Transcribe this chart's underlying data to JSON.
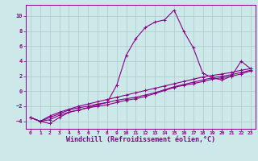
{
  "background_color": "#cce8e8",
  "grid_color": "#aacccc",
  "line_color": "#880088",
  "xlabel": "Windchill (Refroidissement éolien,°C)",
  "xlabel_fontsize": 6.0,
  "yticks": [
    -4,
    -2,
    0,
    2,
    4,
    6,
    8,
    10
  ],
  "xticks": [
    0,
    1,
    2,
    3,
    4,
    5,
    6,
    7,
    8,
    9,
    10,
    11,
    12,
    13,
    14,
    15,
    16,
    17,
    18,
    19,
    20,
    21,
    22,
    23
  ],
  "xlim": [
    -0.5,
    23.5
  ],
  "ylim": [
    -5.0,
    11.5
  ],
  "series1": [
    [
      0,
      -3.5
    ],
    [
      1,
      -4.0
    ],
    [
      2,
      -4.3
    ],
    [
      3,
      -3.5
    ],
    [
      4,
      -2.8
    ],
    [
      5,
      -2.5
    ],
    [
      6,
      -2.2
    ],
    [
      7,
      -1.8
    ],
    [
      8,
      -1.5
    ],
    [
      9,
      0.8
    ],
    [
      10,
      4.8
    ],
    [
      11,
      7.0
    ],
    [
      12,
      8.5
    ],
    [
      13,
      9.2
    ],
    [
      14,
      9.5
    ],
    [
      15,
      10.8
    ],
    [
      16,
      8.0
    ],
    [
      17,
      5.8
    ],
    [
      18,
      2.4
    ],
    [
      19,
      1.8
    ],
    [
      20,
      1.5
    ],
    [
      21,
      2.0
    ],
    [
      22,
      4.0
    ],
    [
      23,
      3.0
    ]
  ],
  "series2": [
    [
      0,
      -3.5
    ],
    [
      1,
      -4.0
    ],
    [
      2,
      -3.8
    ],
    [
      3,
      -3.2
    ],
    [
      4,
      -2.8
    ],
    [
      5,
      -2.5
    ],
    [
      6,
      -2.2
    ],
    [
      7,
      -2.0
    ],
    [
      8,
      -1.8
    ],
    [
      9,
      -1.5
    ],
    [
      10,
      -1.2
    ],
    [
      11,
      -1.0
    ],
    [
      12,
      -0.7
    ],
    [
      13,
      -0.3
    ],
    [
      14,
      0.1
    ],
    [
      15,
      0.5
    ],
    [
      16,
      0.8
    ],
    [
      17,
      1.0
    ],
    [
      18,
      1.3
    ],
    [
      19,
      1.6
    ],
    [
      20,
      1.8
    ],
    [
      21,
      2.0
    ],
    [
      22,
      2.3
    ],
    [
      23,
      2.7
    ]
  ],
  "series3": [
    [
      0,
      -3.5
    ],
    [
      1,
      -4.0
    ],
    [
      2,
      -3.5
    ],
    [
      3,
      -3.0
    ],
    [
      4,
      -2.5
    ],
    [
      5,
      -2.2
    ],
    [
      6,
      -2.0
    ],
    [
      7,
      -1.7
    ],
    [
      8,
      -1.5
    ],
    [
      9,
      -1.2
    ],
    [
      10,
      -1.0
    ],
    [
      11,
      -0.8
    ],
    [
      12,
      -0.5
    ],
    [
      13,
      -0.2
    ],
    [
      14,
      0.2
    ],
    [
      15,
      0.6
    ],
    [
      16,
      0.9
    ],
    [
      17,
      1.2
    ],
    [
      18,
      1.5
    ],
    [
      19,
      1.8
    ],
    [
      20,
      2.0
    ],
    [
      21,
      2.2
    ],
    [
      22,
      2.5
    ],
    [
      23,
      2.8
    ]
  ],
  "series4": [
    [
      0,
      -3.5
    ],
    [
      1,
      -4.0
    ],
    [
      2,
      -3.3
    ],
    [
      3,
      -2.8
    ],
    [
      4,
      -2.4
    ],
    [
      5,
      -2.0
    ],
    [
      6,
      -1.7
    ],
    [
      7,
      -1.4
    ],
    [
      8,
      -1.1
    ],
    [
      9,
      -0.8
    ],
    [
      10,
      -0.5
    ],
    [
      11,
      -0.2
    ],
    [
      12,
      0.1
    ],
    [
      13,
      0.4
    ],
    [
      14,
      0.7
    ],
    [
      15,
      1.0
    ],
    [
      16,
      1.3
    ],
    [
      17,
      1.6
    ],
    [
      18,
      1.9
    ],
    [
      19,
      2.1
    ],
    [
      20,
      2.3
    ],
    [
      21,
      2.5
    ],
    [
      22,
      2.8
    ],
    [
      23,
      3.0
    ]
  ]
}
